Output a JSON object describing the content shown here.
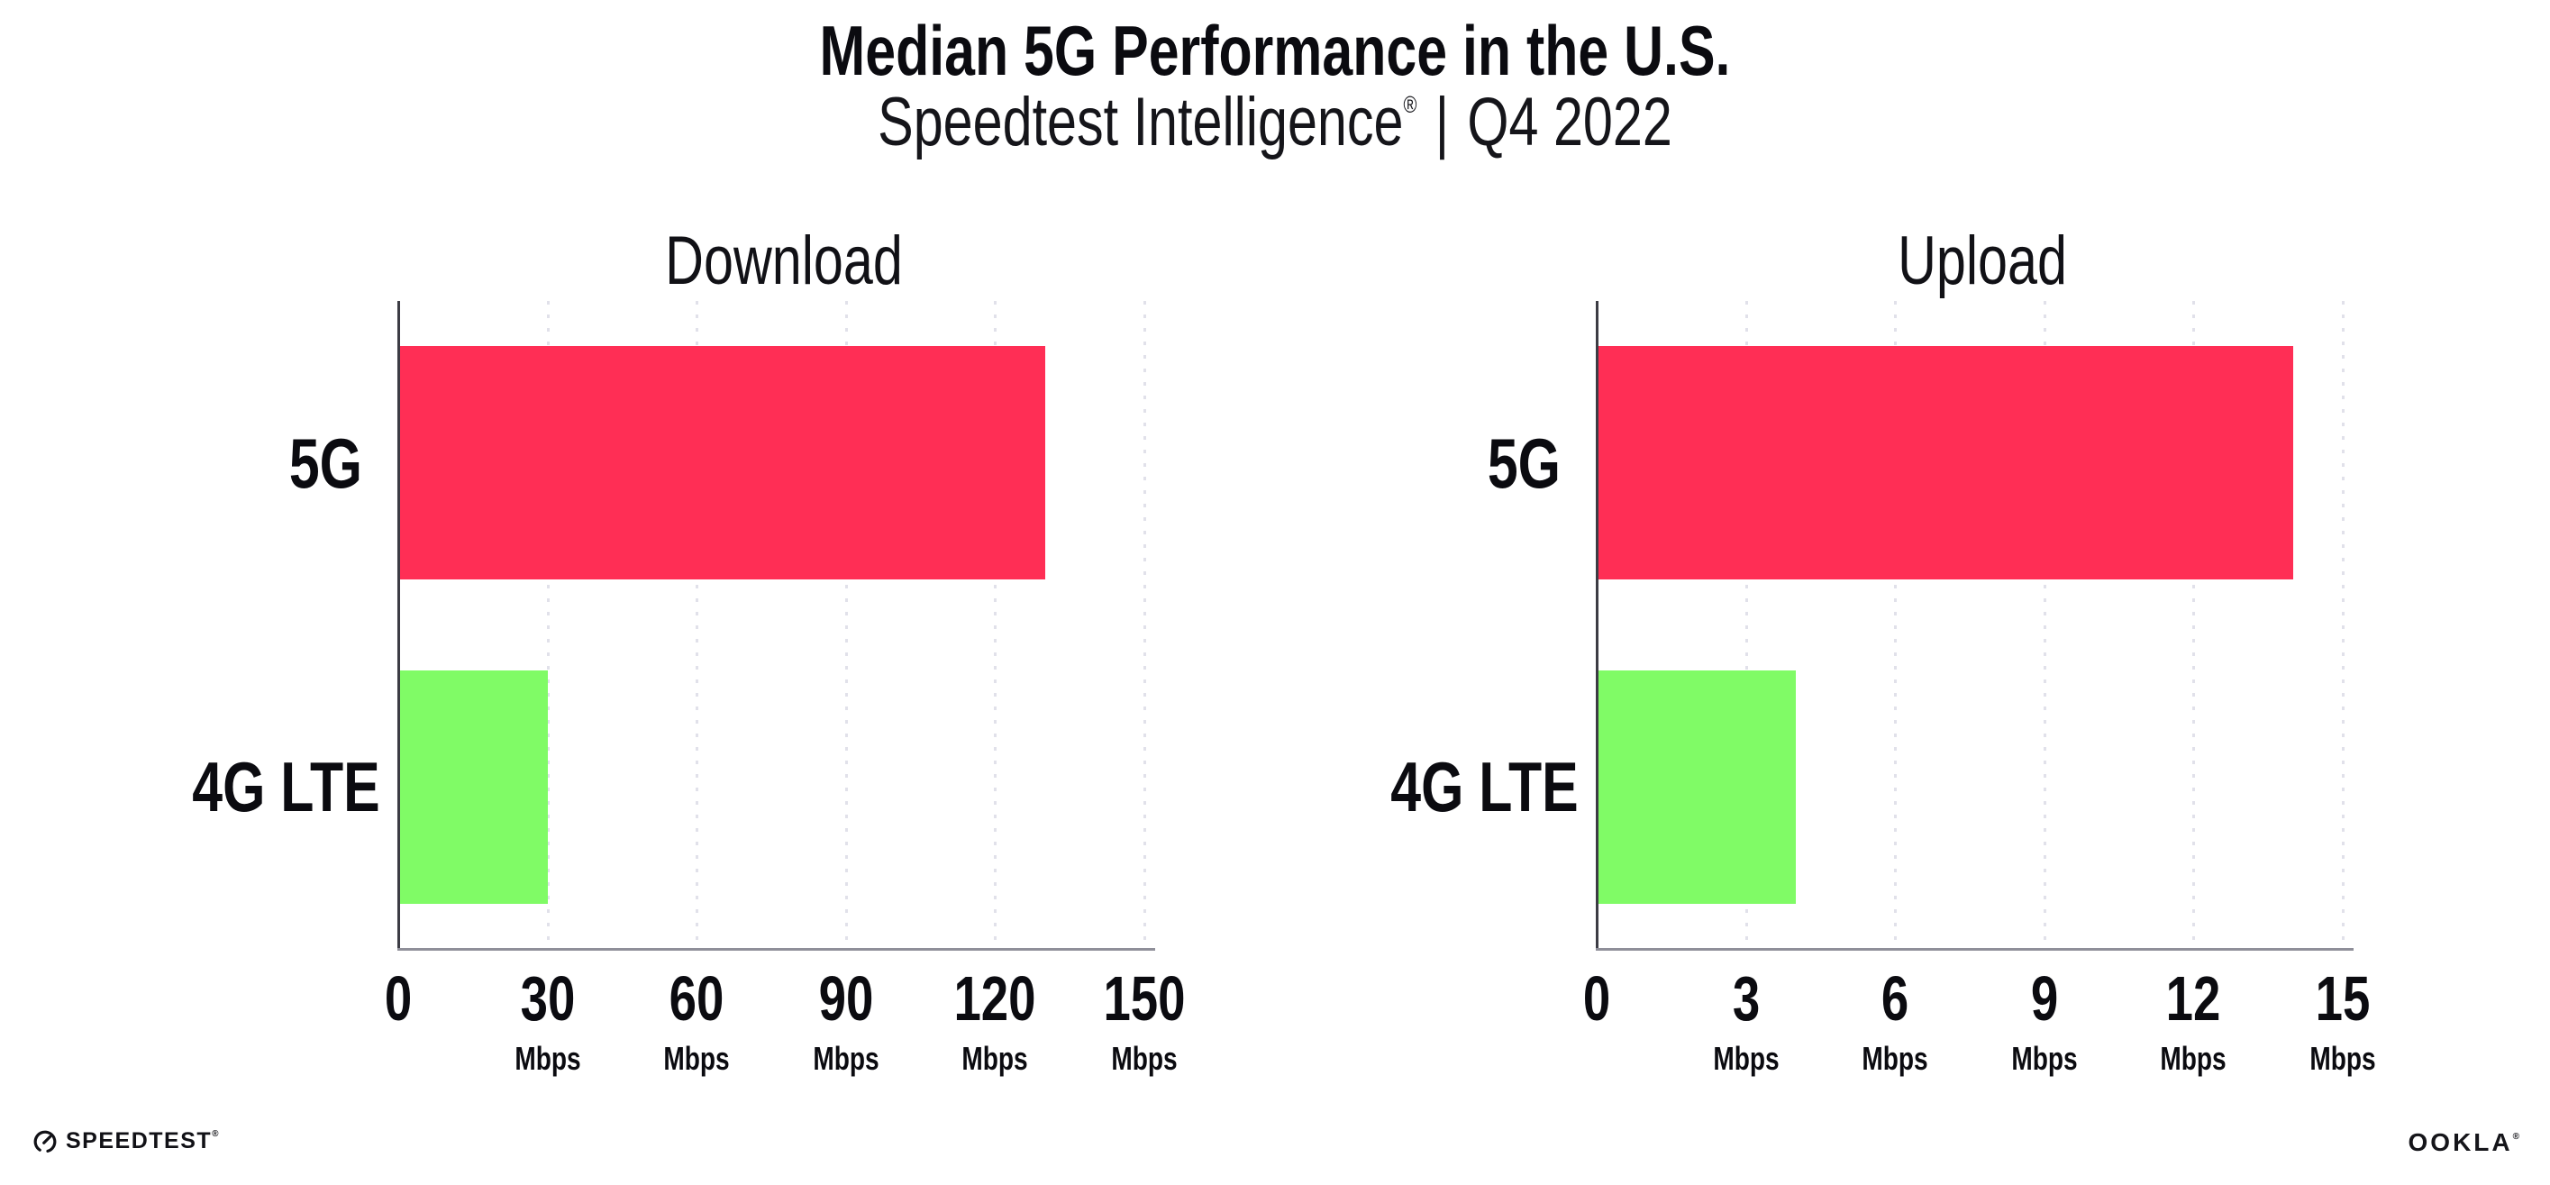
{
  "page": {
    "title": "Median 5G Performance in the U.S.",
    "subtitle": {
      "brand": "Speedtest Intelligence",
      "registered_mark": "®",
      "separator": "|",
      "period": "Q4 2022"
    }
  },
  "chart_data": [
    {
      "type": "bar",
      "orientation": "horizontal",
      "title": "Download",
      "categories": [
        "5G",
        "4G LTE"
      ],
      "values": [
        130,
        30
      ],
      "value_unit": "Mbps",
      "xlim": [
        0,
        150
      ],
      "xticks": [
        {
          "label": "0",
          "unit": ""
        },
        {
          "label": "30",
          "unit": "Mbps"
        },
        {
          "label": "60",
          "unit": "Mbps"
        },
        {
          "label": "90",
          "unit": "Mbps"
        },
        {
          "label": "120",
          "unit": "Mbps"
        },
        {
          "label": "150",
          "unit": "Mbps"
        }
      ],
      "bar_colors": [
        "#FF2E55",
        "#80FB66"
      ],
      "grid": "dotted-vertical",
      "legend": "none"
    },
    {
      "type": "bar",
      "orientation": "horizontal",
      "title": "Upload",
      "categories": [
        "5G",
        "4G LTE"
      ],
      "values": [
        14,
        4
      ],
      "value_unit": "Mbps",
      "xlim": [
        0,
        15
      ],
      "xticks": [
        {
          "label": "0",
          "unit": ""
        },
        {
          "label": "3",
          "unit": "Mbps"
        },
        {
          "label": "6",
          "unit": "Mbps"
        },
        {
          "label": "9",
          "unit": "Mbps"
        },
        {
          "label": "12",
          "unit": "Mbps"
        },
        {
          "label": "15",
          "unit": "Mbps"
        }
      ],
      "bar_colors": [
        "#FF2E55",
        "#80FB66"
      ],
      "grid": "dotted-vertical",
      "legend": "none"
    }
  ],
  "footer": {
    "speedtest_wordmark": "SPEEDTEST",
    "speedtest_registered_mark": "®",
    "ookla_wordmark": "OOKLA",
    "ookla_registered_mark": "®"
  },
  "colors": {
    "bar_5g": "#FF2E55",
    "bar_4g_lte": "#80FB66",
    "y_axis_line": "#3C3C44",
    "x_axis_line": "#8F8F99",
    "gridline_dots": "#E1E1EA",
    "text": "#0B0B10",
    "background": "#FFFFFF"
  }
}
